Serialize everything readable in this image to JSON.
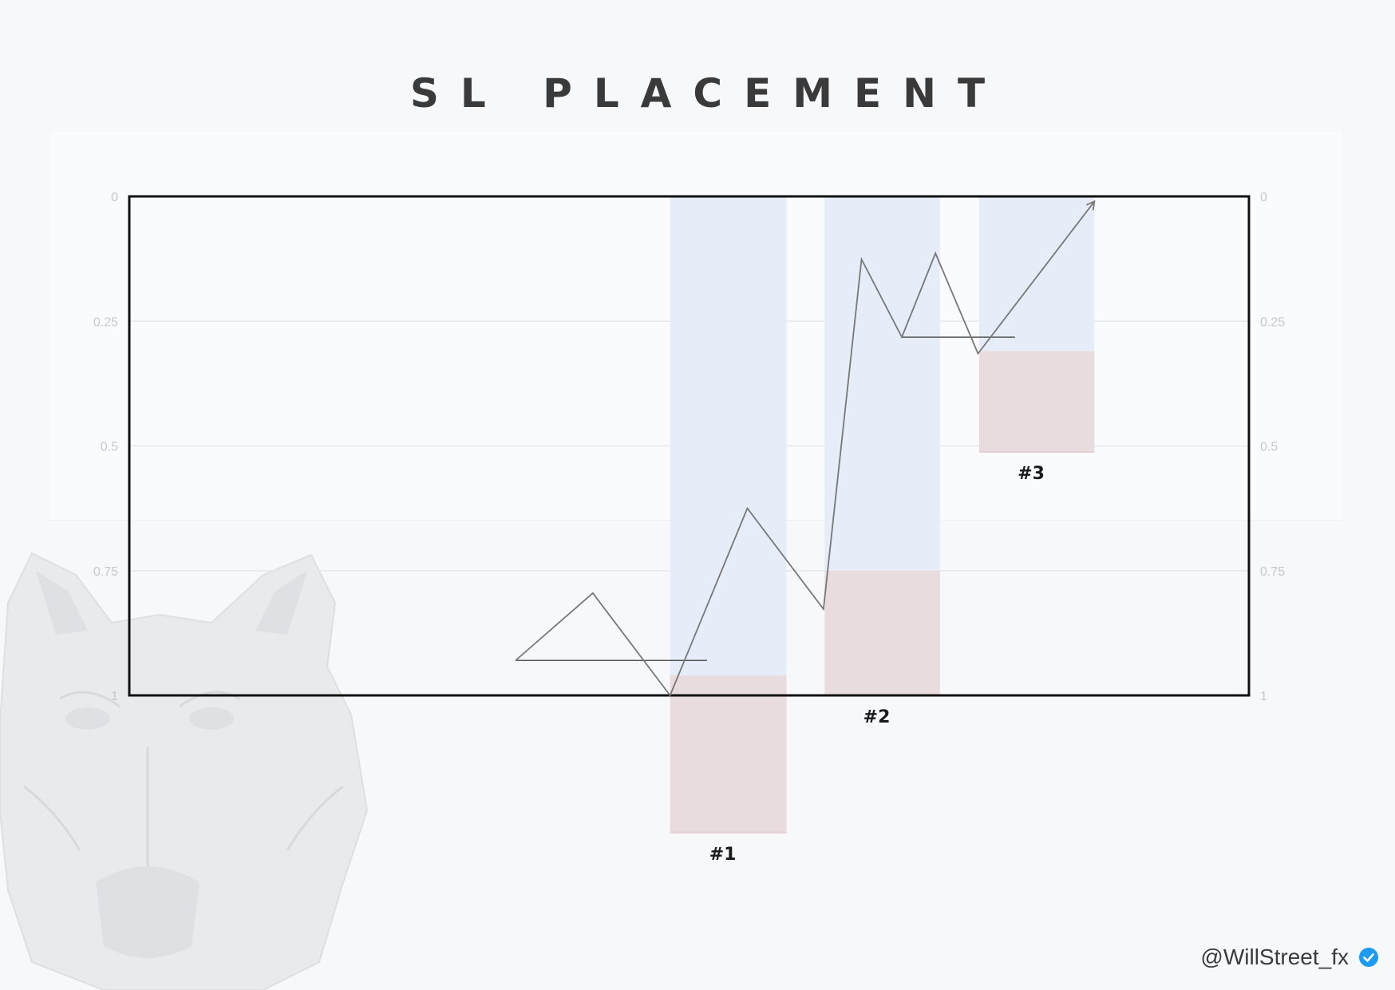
{
  "title": "SL PLACEMENT",
  "watermark": "wolf-head-logo",
  "handle": {
    "text": "@WillStreet_fx",
    "icon": "verified-badge-icon",
    "icon_color": "#1d9bf0"
  },
  "colors": {
    "profit_zone": "#e6edf8",
    "loss_zone": "#e9dcde",
    "price_line": "#777777",
    "frame": "#111111",
    "gridline": "#e6e8ec",
    "tick_text": "#c8c8c8"
  },
  "chart_data": {
    "type": "line",
    "y_axis": {
      "inverted": true,
      "ylim": [
        0,
        1
      ],
      "ticks": [
        "0",
        "0.25",
        "0.5",
        "0.75",
        "1"
      ],
      "tick_values": [
        0,
        0.25,
        0.5,
        0.75,
        1
      ]
    },
    "x_axis": {
      "xlim": [
        0,
        100
      ]
    },
    "grid": "horizontal",
    "price_path": [
      {
        "x": 34.5,
        "y": 0.93
      },
      {
        "x": 41.4,
        "y": 0.795
      },
      {
        "x": 48.3,
        "y": 1.0
      },
      {
        "x": 55.2,
        "y": 0.625
      },
      {
        "x": 62.0,
        "y": 0.827
      },
      {
        "x": 65.4,
        "y": 0.126
      },
      {
        "x": 69.0,
        "y": 0.282
      },
      {
        "x": 72.0,
        "y": 0.114
      },
      {
        "x": 75.8,
        "y": 0.315
      },
      {
        "x": 86.2,
        "y": 0.01
      }
    ],
    "arrow_at_end": true,
    "levels": [
      {
        "x_start": 34.5,
        "x_end": 51.6,
        "y": 0.93
      },
      {
        "x_start": 69.0,
        "x_end": 79.1,
        "y": 0.282
      }
    ],
    "zones": [
      {
        "label": "#1",
        "x_start": 48.3,
        "x_end": 58.7,
        "profit": [
          0,
          0.96
        ],
        "loss": [
          0.96,
          1.275
        ]
      },
      {
        "label": "#2",
        "x_start": 62.1,
        "x_end": 72.4,
        "profit": [
          0,
          0.75
        ],
        "loss": [
          0.75,
          1.0
        ]
      },
      {
        "label": "#3",
        "x_start": 75.9,
        "x_end": 86.2,
        "profit": [
          0,
          0.31
        ],
        "loss": [
          0.31,
          0.512
        ]
      }
    ]
  }
}
